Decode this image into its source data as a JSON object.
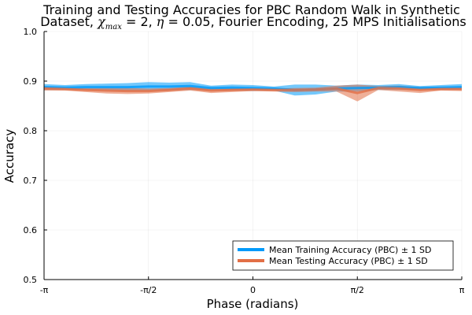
{
  "chart_data": {
    "type": "line",
    "title_line1": "Training and Testing Accuracies for PBC Random Walk in Synthetic",
    "title_line2_pre": "Dataset, ",
    "title_chi": "χ",
    "title_chi_sub": "max",
    "title_chi_eq": " = 2, ",
    "title_eta": "η",
    "title_eta_eq": " = 0.05",
    "title_line2_post": ", Fourier Encoding, 25 MPS Initialisations",
    "xlabel": "Phase (radians)",
    "ylabel": "Accuracy",
    "xlim": [
      -3.1416,
      3.1416
    ],
    "ylim": [
      0.5,
      1.0
    ],
    "x_ticks": [
      {
        "value": -3.1416,
        "label": "-π"
      },
      {
        "value": -1.5708,
        "label": "-π/2"
      },
      {
        "value": 0,
        "label": "0"
      },
      {
        "value": 1.5708,
        "label": "π/2"
      },
      {
        "value": 3.1416,
        "label": "π"
      }
    ],
    "y_ticks": [
      {
        "value": 0.5,
        "label": "0.5"
      },
      {
        "value": 0.6,
        "label": "0.6"
      },
      {
        "value": 0.7,
        "label": "0.7"
      },
      {
        "value": 0.8,
        "label": "0.8"
      },
      {
        "value": 0.9,
        "label": "0.9"
      },
      {
        "value": 1.0,
        "label": "1.0"
      }
    ],
    "grid": true,
    "legend_position": "bottom-right",
    "x": [
      -3.1416,
      -2.8274,
      -2.5133,
      -2.1991,
      -1.885,
      -1.5708,
      -1.2566,
      -0.9425,
      -0.6283,
      -0.3142,
      0.0,
      0.3142,
      0.6283,
      0.9425,
      1.2566,
      1.5708,
      1.885,
      2.1991,
      2.5133,
      2.8274,
      3.1416
    ],
    "series": [
      {
        "name": "Mean Training Accuracy (PBC) ± 1 SD",
        "color": "#009AFA",
        "mean": [
          0.888,
          0.887,
          0.888,
          0.888,
          0.888,
          0.889,
          0.889,
          0.89,
          0.886,
          0.887,
          0.886,
          0.885,
          0.882,
          0.883,
          0.885,
          0.886,
          0.887,
          0.888,
          0.886,
          0.887,
          0.888
        ],
        "sd": [
          0.006,
          0.005,
          0.006,
          0.007,
          0.008,
          0.009,
          0.008,
          0.008,
          0.005,
          0.006,
          0.006,
          0.004,
          0.011,
          0.01,
          0.006,
          0.007,
          0.005,
          0.006,
          0.004,
          0.005,
          0.006
        ]
      },
      {
        "name": "Mean Testing Accuracy (PBC) ± 1 SD",
        "color": "#E26F46",
        "mean": [
          0.885,
          0.884,
          0.882,
          0.881,
          0.88,
          0.88,
          0.882,
          0.885,
          0.881,
          0.882,
          0.883,
          0.882,
          0.882,
          0.883,
          0.885,
          0.876,
          0.886,
          0.885,
          0.882,
          0.884,
          0.884
        ],
        "sd": [
          0.004,
          0.003,
          0.004,
          0.006,
          0.006,
          0.005,
          0.004,
          0.004,
          0.005,
          0.004,
          0.003,
          0.003,
          0.004,
          0.004,
          0.006,
          0.017,
          0.004,
          0.006,
          0.006,
          0.003,
          0.004
        ]
      }
    ]
  }
}
